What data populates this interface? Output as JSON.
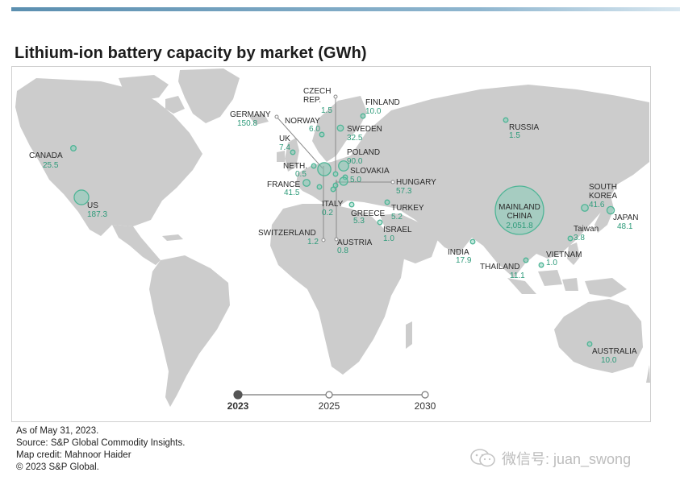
{
  "title": "Lithium-ion battery capacity by market (GWh)",
  "colors": {
    "bubble_fill": "#9ad8c4",
    "bubble_stroke": "#4fb596",
    "value_text": "#2e9b7a",
    "land": "#cccccc",
    "top_bar": "#5b8fb0"
  },
  "markets": [
    {
      "name": "CANADA",
      "value": "25.5",
      "gwh": 25.5
    },
    {
      "name": "US",
      "value": "187.3",
      "gwh": 187.3
    },
    {
      "name": "UK",
      "value": "7.4",
      "gwh": 7.4
    },
    {
      "name": "GERMANY",
      "value": "150.8",
      "gwh": 150.8
    },
    {
      "name": "NORWAY",
      "value": "6.0",
      "gwh": 6.0
    },
    {
      "name": "CZECH REP.",
      "value": "1.5",
      "gwh": 1.5
    },
    {
      "name": "FINLAND",
      "value": "10.0",
      "gwh": 10.0
    },
    {
      "name": "SWEDEN",
      "value": "32.5",
      "gwh": 32.5
    },
    {
      "name": "POLAND",
      "value": "90.0",
      "gwh": 90.0
    },
    {
      "name": "SLOVAKIA",
      "value": "5.0",
      "gwh": 5.0
    },
    {
      "name": "NETH.",
      "value": "0.5",
      "gwh": 0.5
    },
    {
      "name": "FRANCE",
      "value": "41.5",
      "gwh": 41.5
    },
    {
      "name": "HUNGARY",
      "value": "57.3",
      "gwh": 57.3
    },
    {
      "name": "ITALY",
      "value": "0.2",
      "gwh": 0.2
    },
    {
      "name": "GREECE",
      "value": "5.3",
      "gwh": 5.3
    },
    {
      "name": "TURKEY",
      "value": "5.2",
      "gwh": 5.2
    },
    {
      "name": "SWITZERLAND",
      "value": "1.2",
      "gwh": 1.2
    },
    {
      "name": "ISRAEL",
      "value": "1.0",
      "gwh": 1.0
    },
    {
      "name": "AUSTRIA",
      "value": "0.8",
      "gwh": 0.8
    },
    {
      "name": "RUSSIA",
      "value": "1.5",
      "gwh": 1.5
    },
    {
      "name": "MAINLAND CHINA",
      "value": "2,051.8",
      "gwh": 2051.8
    },
    {
      "name": "SOUTH KOREA",
      "value": "41.6",
      "gwh": 41.6
    },
    {
      "name": "JAPAN",
      "value": "48.1",
      "gwh": 48.1
    },
    {
      "name": "Taiwan",
      "value": "3.8",
      "gwh": 3.8
    },
    {
      "name": "INDIA",
      "value": "17.9",
      "gwh": 17.9
    },
    {
      "name": "THAILAND",
      "value": "11.1",
      "gwh": 11.1
    },
    {
      "name": "VIETNAM",
      "value": "1.0",
      "gwh": 1.0
    },
    {
      "name": "AUSTRALIA",
      "value": "10.0",
      "gwh": 10.0
    }
  ],
  "timeline": {
    "years": [
      "2023",
      "2025",
      "2030"
    ],
    "selected": "2023"
  },
  "footer": {
    "as_of": "As of May 31, 2023.",
    "source": "Source: S&P Global Commodity Insights.",
    "credit": "Map credit: Mahnoor Haider",
    "copyright": "© 2023 S&P Global."
  },
  "watermark": {
    "text": "微信号: juan_swong",
    "icon": "wechat-icon"
  }
}
